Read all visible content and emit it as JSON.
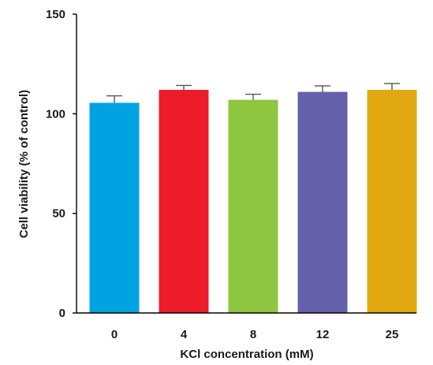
{
  "chart_data": {
    "type": "bar",
    "categories": [
      "0",
      "4",
      "8",
      "12",
      "25"
    ],
    "values": [
      105.5,
      112,
      107,
      111,
      112
    ],
    "errors": [
      3.5,
      2.2,
      2.8,
      3.0,
      3.2
    ],
    "colors": [
      "#00a3e2",
      "#ec1c2a",
      "#8dc63f",
      "#6460aa",
      "#e2a80f"
    ],
    "title": "",
    "xlabel": "KCl concentration (mM)",
    "ylabel": "Cell viability (% of control)",
    "ylim": [
      0,
      150
    ],
    "yticks": [
      0,
      50,
      100,
      150
    ],
    "grid": false,
    "legend": "none"
  }
}
